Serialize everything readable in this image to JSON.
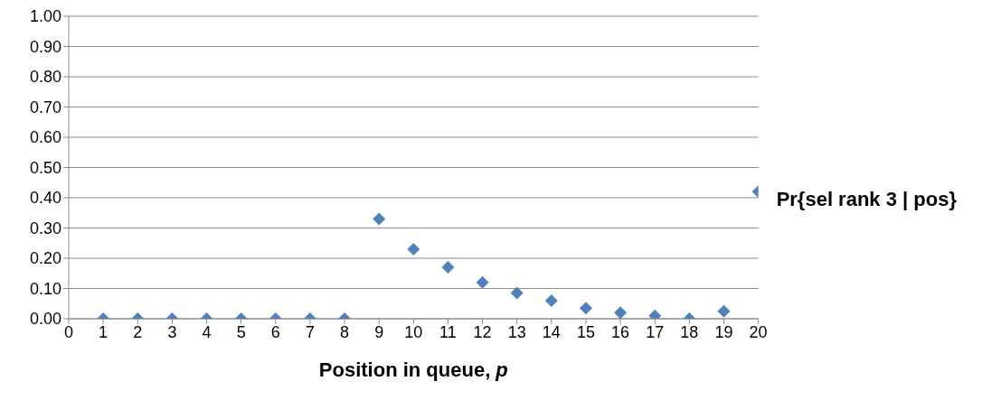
{
  "chart_data": {
    "type": "scatter",
    "xlabel": "Position in queue, p",
    "x": [
      1,
      2,
      3,
      4,
      5,
      6,
      7,
      8,
      9,
      10,
      11,
      12,
      13,
      14,
      15,
      16,
      17,
      18,
      19,
      20
    ],
    "series": [
      {
        "name": "Pr{sel rank 3 | pos}",
        "color": "#4f81bd",
        "values": [
          0,
          0,
          0,
          0,
          0,
          0,
          0,
          0,
          0.33,
          0.23,
          0.17,
          0.12,
          0.085,
          0.06,
          0.035,
          0.02,
          0.01,
          0,
          0.025,
          0.42
        ]
      }
    ],
    "xlim": [
      0,
      20
    ],
    "xticks": [
      0,
      1,
      2,
      3,
      4,
      5,
      6,
      7,
      8,
      9,
      10,
      11,
      12,
      13,
      14,
      15,
      16,
      17,
      18,
      19,
      20
    ],
    "ylim": [
      0,
      1
    ],
    "yticks": [
      {
        "value": 0,
        "label": "0.00"
      },
      {
        "value": 0.1,
        "label": "0.10"
      },
      {
        "value": 0.2,
        "label": "0.20"
      },
      {
        "value": 0.3,
        "label": "0.30"
      },
      {
        "value": 0.4,
        "label": "0.40"
      },
      {
        "value": 0.5,
        "label": "0.50"
      },
      {
        "value": 0.6,
        "label": "0.60"
      },
      {
        "value": 0.7,
        "label": "0.70"
      },
      {
        "value": 0.8,
        "label": "0.80"
      },
      {
        "value": 0.9,
        "label": "0.90"
      },
      {
        "value": 1,
        "label": "1.00"
      }
    ],
    "grid": "y",
    "legend": "right",
    "marker": "diamond"
  }
}
